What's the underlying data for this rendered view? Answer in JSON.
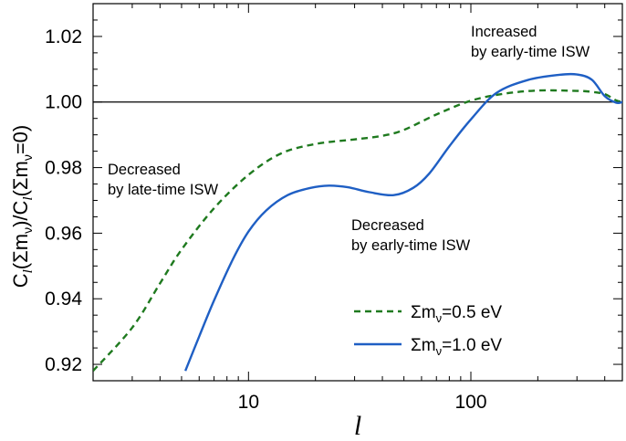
{
  "chart_data": {
    "type": "line",
    "xscale": "log",
    "xlim": [
      2,
      480
    ],
    "ylim": [
      0.915,
      1.03
    ],
    "xlabel": "l",
    "ylabel": "C_l(Σm_ν)/C_l(Σm_ν=0)",
    "ylabel_parts": {
      "c1": "C",
      "sub1": "l",
      "mid1": "(Σm",
      "nu1": "ν",
      "mid2": ")/C",
      "sub2": "l",
      "mid3": "(Σm",
      "nu2": "ν",
      "end": "=0)"
    },
    "x_ticks": [
      {
        "value": 10,
        "label": "10"
      },
      {
        "value": 100,
        "label": "100"
      }
    ],
    "y_ticks": [
      {
        "value": 0.92,
        "label": "0.92"
      },
      {
        "value": 0.94,
        "label": "0.94"
      },
      {
        "value": 0.96,
        "label": "0.96"
      },
      {
        "value": 0.98,
        "label": "0.98"
      },
      {
        "value": 1.0,
        "label": "1.00"
      },
      {
        "value": 1.02,
        "label": "1.02"
      }
    ],
    "reference_line": {
      "y": 1.0,
      "color": "#000000"
    },
    "series": [
      {
        "name": "Σm_ν=0.5 eV",
        "legend_prefix": "Σm",
        "legend_sub": "ν",
        "legend_suffix": "=0.5 eV",
        "color": "#1f7a1f",
        "style": "dashed",
        "x": [
          2.0,
          3.0,
          4.0,
          5.0,
          7.0,
          10.0,
          14.0,
          20.0,
          30.0,
          40.0,
          50.0,
          70.0,
          100.0,
          140.0,
          200.0,
          300.0,
          350.0,
          400.0,
          450.0,
          480.0
        ],
        "values": [
          0.918,
          0.9312,
          0.9447,
          0.955,
          0.9676,
          0.9778,
          0.9843,
          0.9872,
          0.9886,
          0.9897,
          0.9915,
          0.9962,
          1.0004,
          1.0025,
          1.0035,
          1.0034,
          1.0031,
          1.0024,
          1.0005,
          1.0
        ]
      },
      {
        "name": "Σm_ν=1.0 eV",
        "legend_prefix": "Σm",
        "legend_sub": "ν",
        "legend_suffix": "=1.0 eV",
        "color": "#1f5fc4",
        "style": "solid",
        "x": [
          5.2,
          6.0,
          7.0,
          8.5,
          10.0,
          12.0,
          15.0,
          19.0,
          23.0,
          28.0,
          35.0,
          45.0,
          55.0,
          65.0,
          80.0,
          100.0,
          130.0,
          180.0,
          250.0,
          300.0,
          350.0,
          400.0,
          450.0,
          480.0
        ],
        "values": [
          0.918,
          0.9285,
          0.9395,
          0.952,
          0.9605,
          0.9669,
          0.9716,
          0.9738,
          0.9745,
          0.974,
          0.9725,
          0.9716,
          0.9738,
          0.9782,
          0.9865,
          0.9947,
          1.0027,
          1.0067,
          1.0083,
          1.0084,
          1.0068,
          1.0018,
          0.9998,
          1.0
        ]
      }
    ],
    "annotations": [
      {
        "id": "late",
        "lines": [
          "Decreased",
          "by late-time ISW"
        ]
      },
      {
        "id": "early-dec",
        "lines": [
          "Decreased",
          "by early-time ISW"
        ]
      },
      {
        "id": "early-inc",
        "lines": [
          "Increased",
          "by early-time ISW"
        ]
      }
    ],
    "legend_position": "bottom-right"
  }
}
